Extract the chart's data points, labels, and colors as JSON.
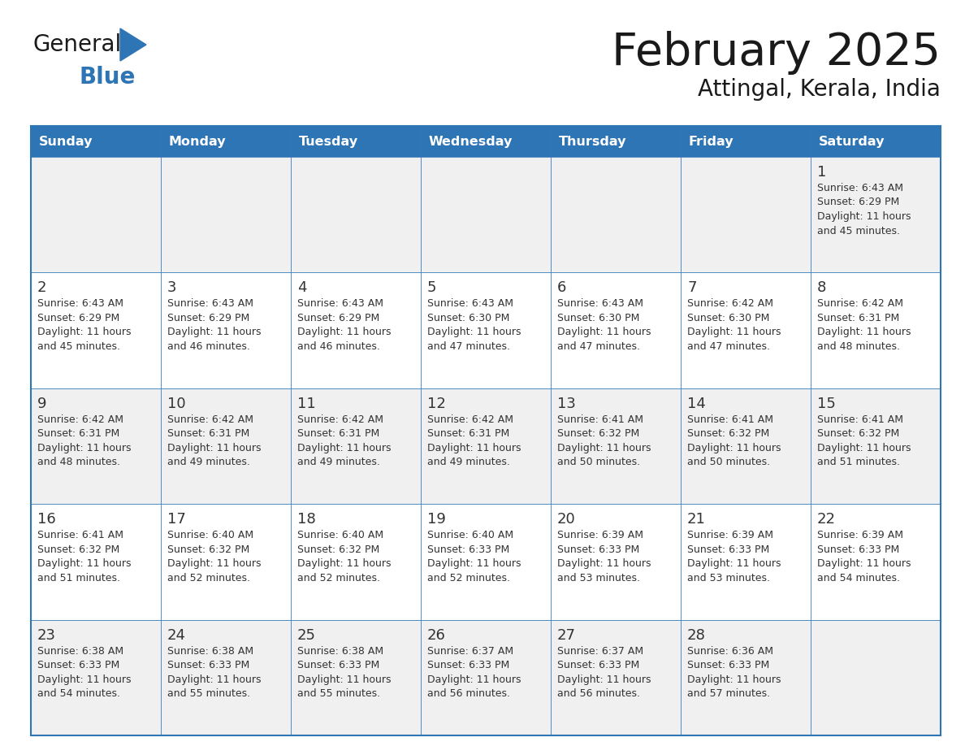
{
  "title": "February 2025",
  "subtitle": "Attingal, Kerala, India",
  "header_bg": "#2E75B6",
  "header_text_color": "#FFFFFF",
  "cell_bg_white": "#FFFFFF",
  "cell_bg_gray": "#F0F0F0",
  "border_color": "#2E75B6",
  "row_divider_color": "#2E75B6",
  "days_of_week": [
    "Sunday",
    "Monday",
    "Tuesday",
    "Wednesday",
    "Thursday",
    "Friday",
    "Saturday"
  ],
  "title_color": "#1a1a1a",
  "subtitle_color": "#1a1a1a",
  "day_num_color": "#333333",
  "cell_text_color": "#333333",
  "logo_general_color": "#1a1a1a",
  "logo_blue_color": "#2E75B6",
  "calendar_data": [
    [
      null,
      null,
      null,
      null,
      null,
      null,
      {
        "day": 1,
        "sunrise": "6:43 AM",
        "sunset": "6:29 PM",
        "daylight_hrs": "11 hours",
        "daylight_min": "and 45 minutes."
      }
    ],
    [
      {
        "day": 2,
        "sunrise": "6:43 AM",
        "sunset": "6:29 PM",
        "daylight_hrs": "11 hours",
        "daylight_min": "and 45 minutes."
      },
      {
        "day": 3,
        "sunrise": "6:43 AM",
        "sunset": "6:29 PM",
        "daylight_hrs": "11 hours",
        "daylight_min": "and 46 minutes."
      },
      {
        "day": 4,
        "sunrise": "6:43 AM",
        "sunset": "6:29 PM",
        "daylight_hrs": "11 hours",
        "daylight_min": "and 46 minutes."
      },
      {
        "day": 5,
        "sunrise": "6:43 AM",
        "sunset": "6:30 PM",
        "daylight_hrs": "11 hours",
        "daylight_min": "and 47 minutes."
      },
      {
        "day": 6,
        "sunrise": "6:43 AM",
        "sunset": "6:30 PM",
        "daylight_hrs": "11 hours",
        "daylight_min": "and 47 minutes."
      },
      {
        "day": 7,
        "sunrise": "6:42 AM",
        "sunset": "6:30 PM",
        "daylight_hrs": "11 hours",
        "daylight_min": "and 47 minutes."
      },
      {
        "day": 8,
        "sunrise": "6:42 AM",
        "sunset": "6:31 PM",
        "daylight_hrs": "11 hours",
        "daylight_min": "and 48 minutes."
      }
    ],
    [
      {
        "day": 9,
        "sunrise": "6:42 AM",
        "sunset": "6:31 PM",
        "daylight_hrs": "11 hours",
        "daylight_min": "and 48 minutes."
      },
      {
        "day": 10,
        "sunrise": "6:42 AM",
        "sunset": "6:31 PM",
        "daylight_hrs": "11 hours",
        "daylight_min": "and 49 minutes."
      },
      {
        "day": 11,
        "sunrise": "6:42 AM",
        "sunset": "6:31 PM",
        "daylight_hrs": "11 hours",
        "daylight_min": "and 49 minutes."
      },
      {
        "day": 12,
        "sunrise": "6:42 AM",
        "sunset": "6:31 PM",
        "daylight_hrs": "11 hours",
        "daylight_min": "and 49 minutes."
      },
      {
        "day": 13,
        "sunrise": "6:41 AM",
        "sunset": "6:32 PM",
        "daylight_hrs": "11 hours",
        "daylight_min": "and 50 minutes."
      },
      {
        "day": 14,
        "sunrise": "6:41 AM",
        "sunset": "6:32 PM",
        "daylight_hrs": "11 hours",
        "daylight_min": "and 50 minutes."
      },
      {
        "day": 15,
        "sunrise": "6:41 AM",
        "sunset": "6:32 PM",
        "daylight_hrs": "11 hours",
        "daylight_min": "and 51 minutes."
      }
    ],
    [
      {
        "day": 16,
        "sunrise": "6:41 AM",
        "sunset": "6:32 PM",
        "daylight_hrs": "11 hours",
        "daylight_min": "and 51 minutes."
      },
      {
        "day": 17,
        "sunrise": "6:40 AM",
        "sunset": "6:32 PM",
        "daylight_hrs": "11 hours",
        "daylight_min": "and 52 minutes."
      },
      {
        "day": 18,
        "sunrise": "6:40 AM",
        "sunset": "6:32 PM",
        "daylight_hrs": "11 hours",
        "daylight_min": "and 52 minutes."
      },
      {
        "day": 19,
        "sunrise": "6:40 AM",
        "sunset": "6:33 PM",
        "daylight_hrs": "11 hours",
        "daylight_min": "and 52 minutes."
      },
      {
        "day": 20,
        "sunrise": "6:39 AM",
        "sunset": "6:33 PM",
        "daylight_hrs": "11 hours",
        "daylight_min": "and 53 minutes."
      },
      {
        "day": 21,
        "sunrise": "6:39 AM",
        "sunset": "6:33 PM",
        "daylight_hrs": "11 hours",
        "daylight_min": "and 53 minutes."
      },
      {
        "day": 22,
        "sunrise": "6:39 AM",
        "sunset": "6:33 PM",
        "daylight_hrs": "11 hours",
        "daylight_min": "and 54 minutes."
      }
    ],
    [
      {
        "day": 23,
        "sunrise": "6:38 AM",
        "sunset": "6:33 PM",
        "daylight_hrs": "11 hours",
        "daylight_min": "and 54 minutes."
      },
      {
        "day": 24,
        "sunrise": "6:38 AM",
        "sunset": "6:33 PM",
        "daylight_hrs": "11 hours",
        "daylight_min": "and 55 minutes."
      },
      {
        "day": 25,
        "sunrise": "6:38 AM",
        "sunset": "6:33 PM",
        "daylight_hrs": "11 hours",
        "daylight_min": "and 55 minutes."
      },
      {
        "day": 26,
        "sunrise": "6:37 AM",
        "sunset": "6:33 PM",
        "daylight_hrs": "11 hours",
        "daylight_min": "and 56 minutes."
      },
      {
        "day": 27,
        "sunrise": "6:37 AM",
        "sunset": "6:33 PM",
        "daylight_hrs": "11 hours",
        "daylight_min": "and 56 minutes."
      },
      {
        "day": 28,
        "sunrise": "6:36 AM",
        "sunset": "6:33 PM",
        "daylight_hrs": "11 hours",
        "daylight_min": "and 57 minutes."
      },
      null
    ]
  ]
}
